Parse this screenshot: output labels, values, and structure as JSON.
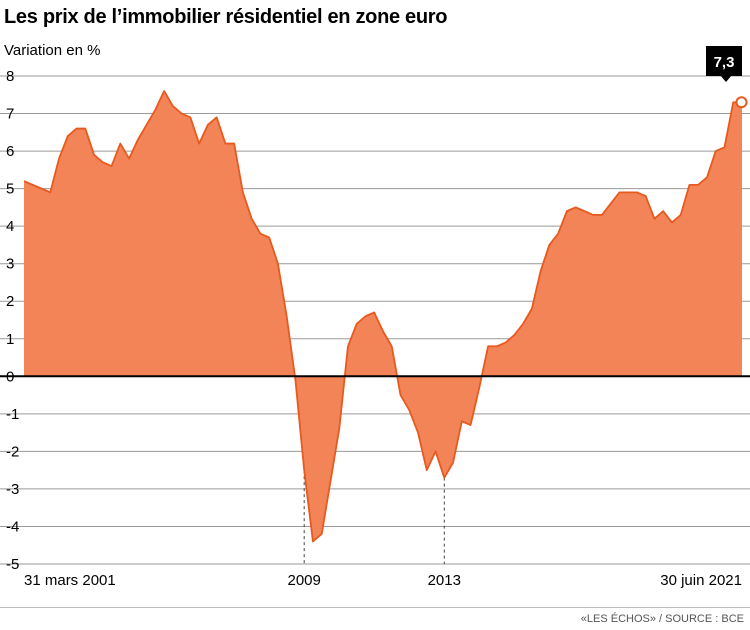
{
  "title": "Les prix de l’immobilier résidentiel en zone euro",
  "subtitle": "Variation en %",
  "source": "«LES ÉCHOS» / SOURCE : BCE",
  "colors": {
    "fill": "#f28457",
    "stroke": "#e65a1f",
    "grid": "#9a9a9a",
    "zero": "#000000",
    "callout": "#000000"
  },
  "chart_data": {
    "type": "area",
    "ylabel": "Variation en %",
    "ylim": [
      -5,
      8
    ],
    "yticks": [
      8,
      7,
      6,
      5,
      4,
      3,
      2,
      1,
      0,
      -1,
      -2,
      -3,
      -4,
      -5
    ],
    "xlim": [
      2001.0,
      2021.5
    ],
    "xtick_labels": [
      {
        "label": "31 mars 2001",
        "x": 2001.25
      },
      {
        "label": "2009",
        "x": 2009.0
      },
      {
        "label": "2013",
        "x": 2013.0
      },
      {
        "label": "30 juin 2021",
        "x": 2021.5
      }
    ],
    "reference_lines_x": [
      2009.0,
      2013.0
    ],
    "callout": {
      "label": "7,3",
      "x": 2021.5,
      "y": 7.3
    },
    "x": [
      2001.0,
      2001.25,
      2001.5,
      2001.75,
      2002.0,
      2002.25,
      2002.5,
      2002.75,
      2003.0,
      2003.25,
      2003.5,
      2003.75,
      2004.0,
      2004.25,
      2004.5,
      2004.75,
      2005.0,
      2005.25,
      2005.5,
      2005.75,
      2006.0,
      2006.25,
      2006.5,
      2006.75,
      2007.0,
      2007.25,
      2007.5,
      2007.75,
      2008.0,
      2008.25,
      2008.5,
      2008.75,
      2009.0,
      2009.25,
      2009.5,
      2009.75,
      2010.0,
      2010.25,
      2010.5,
      2010.75,
      2011.0,
      2011.25,
      2011.5,
      2011.75,
      2012.0,
      2012.25,
      2012.5,
      2012.75,
      2013.0,
      2013.25,
      2013.5,
      2013.75,
      2014.0,
      2014.25,
      2014.5,
      2014.75,
      2015.0,
      2015.25,
      2015.5,
      2015.75,
      2016.0,
      2016.25,
      2016.5,
      2016.75,
      2017.0,
      2017.25,
      2017.5,
      2017.75,
      2018.0,
      2018.25,
      2018.5,
      2018.75,
      2019.0,
      2019.25,
      2019.5,
      2019.75,
      2020.0,
      2020.25,
      2020.5,
      2020.75,
      2021.0,
      2021.25,
      2021.5
    ],
    "values": [
      5.2,
      5.1,
      5.0,
      4.9,
      5.8,
      6.4,
      6.6,
      6.6,
      5.9,
      5.7,
      5.6,
      6.2,
      5.8,
      6.3,
      6.7,
      7.1,
      7.6,
      7.2,
      7.0,
      6.9,
      6.2,
      6.7,
      6.9,
      6.2,
      6.2,
      4.9,
      4.2,
      3.8,
      3.7,
      3.0,
      1.6,
      -0.1,
      -2.5,
      -4.4,
      -4.2,
      -2.8,
      -1.4,
      0.8,
      1.4,
      1.6,
      1.7,
      1.2,
      0.8,
      -0.5,
      -0.9,
      -1.5,
      -2.5,
      -2.0,
      -2.7,
      -2.3,
      -1.2,
      -1.3,
      -0.3,
      0.8,
      0.8,
      0.9,
      1.1,
      1.4,
      1.8,
      2.8,
      3.5,
      3.8,
      4.4,
      4.5,
      4.4,
      4.3,
      4.3,
      4.6,
      4.9,
      4.9,
      4.9,
      4.8,
      4.2,
      4.4,
      4.1,
      4.3,
      5.1,
      5.1,
      5.3,
      6.0,
      6.1,
      7.3,
      7.3
    ]
  }
}
